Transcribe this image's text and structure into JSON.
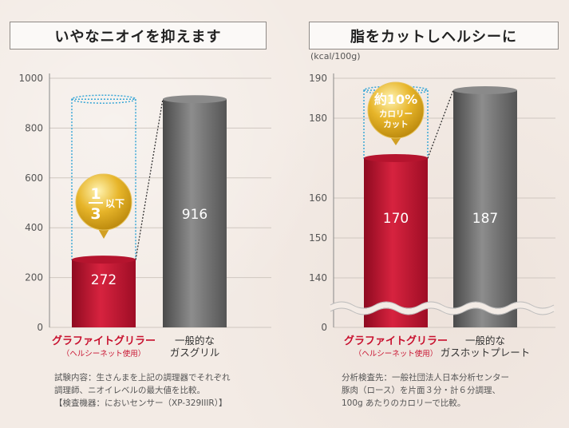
{
  "chart_data": [
    {
      "type": "bar",
      "title": "いやなニオイを抑えます",
      "categories": [
        "グラファイトグリラー（ヘルシーネット使用）",
        "一般的なガスグリル"
      ],
      "category_lines": [
        [
          "グラファイトグリラー",
          "（ヘルシーネット使用）"
        ],
        [
          "一般的な",
          "ガスグリル"
        ]
      ],
      "category_colors": [
        "#c8102e",
        "#333333"
      ],
      "values": [
        272,
        916
      ],
      "value_labels": [
        "272",
        "916"
      ],
      "bar_colors": [
        "#c3112f",
        "#6f6f6f"
      ],
      "ylim": [
        0,
        1000
      ],
      "yticks": [
        0,
        200,
        400,
        600,
        800,
        1000
      ],
      "callout": {
        "line1": "1",
        "line2": "3",
        "suffix": "以下"
      },
      "note": [
        "試験内容：生さんまを上記の調理器でそれぞれ",
        "調理師、ニオイレベルの最大値を比較。",
        "【検査機器：においセンサー（XP-329IIIR）】"
      ]
    },
    {
      "type": "bar",
      "title": "脂をカットしヘルシーに",
      "unit": "(kcal/100g)",
      "categories": [
        "グラファイトグリラー（ヘルシーネット使用）",
        "一般的なガスホットプレート"
      ],
      "category_lines": [
        [
          "グラファイトグリラー",
          "（ヘルシーネット使用）"
        ],
        [
          "一般的な",
          "ガスホットプレート"
        ]
      ],
      "category_colors": [
        "#c8102e",
        "#333333"
      ],
      "values": [
        170,
        187
      ],
      "value_labels": [
        "170",
        "187"
      ],
      "bar_colors": [
        "#c3112f",
        "#6f6f6f"
      ],
      "ylim": [
        0,
        190
      ],
      "axis_break": true,
      "yticks": [
        0,
        140,
        150,
        160,
        180,
        190
      ],
      "callout": {
        "line1": "約10%",
        "line2": "カロリー",
        "line3": "カット"
      },
      "note": [
        "分析検査先：一般社団法人日本分析センター",
        "豚肉（ロース）を片面３分・計６分調理、",
        "100g あたりのカロリーで比較。"
      ]
    }
  ]
}
